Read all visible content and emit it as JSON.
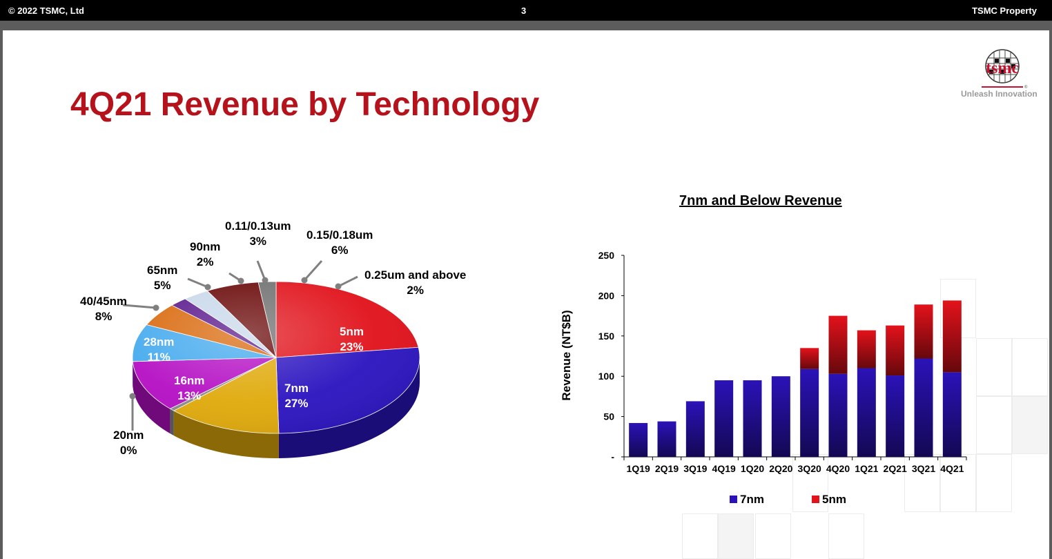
{
  "header": {
    "copyright": "© 2022 TSMC, Ltd",
    "page_number": "3",
    "property": "TSMC Property"
  },
  "slide": {
    "title": "4Q21 Revenue by Technology"
  },
  "logo": {
    "wordmark": "tsmc",
    "tagline": "Unleash Innovation"
  },
  "colors": {
    "title_red": "#b5121b",
    "n7": "#2b12b8",
    "n5": "#e3121b"
  },
  "chart_data": [
    {
      "type": "pie",
      "title": "",
      "slices": [
        {
          "label": "5nm",
          "value": "23%",
          "color": "#e1121b"
        },
        {
          "label": "7nm",
          "value": "27%",
          "color": "#2c15c0"
        },
        {
          "label": "16nm",
          "value": "13%",
          "color": "#e0aa0c"
        },
        {
          "label": "20nm",
          "value": "0%",
          "color": "#8a8a8a"
        },
        {
          "label": "28nm",
          "value": "11%",
          "color": "#b510c4"
        },
        {
          "label": "40/45nm",
          "value": "8%",
          "color": "#45aaee"
        },
        {
          "label": "65nm",
          "value": "5%",
          "color": "#d96a0e"
        },
        {
          "label": "90nm",
          "value": "2%",
          "color": "#5a1a8c"
        },
        {
          "label": "0.11/0.13um",
          "value": "3%",
          "color": "#c8d8ea"
        },
        {
          "label": "0.15/0.18um",
          "value": "6%",
          "color": "#6a0808"
        },
        {
          "label": "0.25um and above",
          "value": "2%",
          "color": "#707070"
        }
      ]
    },
    {
      "type": "bar",
      "stacked": true,
      "title": "7nm and Below Revenue",
      "ylabel": "Revenue (NT$B)",
      "ylim": [
        0,
        250
      ],
      "yticks": [
        "250",
        "200",
        "150",
        "100",
        "50",
        "-"
      ],
      "categories": [
        "1Q19",
        "2Q19",
        "3Q19",
        "4Q19",
        "1Q20",
        "2Q20",
        "3Q20",
        "4Q20",
        "1Q21",
        "2Q21",
        "3Q21",
        "4Q21"
      ],
      "series": [
        {
          "name": "7nm",
          "color": "#2b12b8",
          "values": [
            42,
            44,
            69,
            95,
            95,
            100,
            109,
            103,
            110,
            101,
            122,
            105
          ]
        },
        {
          "name": "5nm",
          "color": "#e3121b",
          "values": [
            0,
            0,
            0,
            0,
            0,
            0,
            26,
            72,
            47,
            62,
            67,
            89
          ]
        }
      ],
      "legend": {
        "position": "bottom"
      }
    }
  ]
}
